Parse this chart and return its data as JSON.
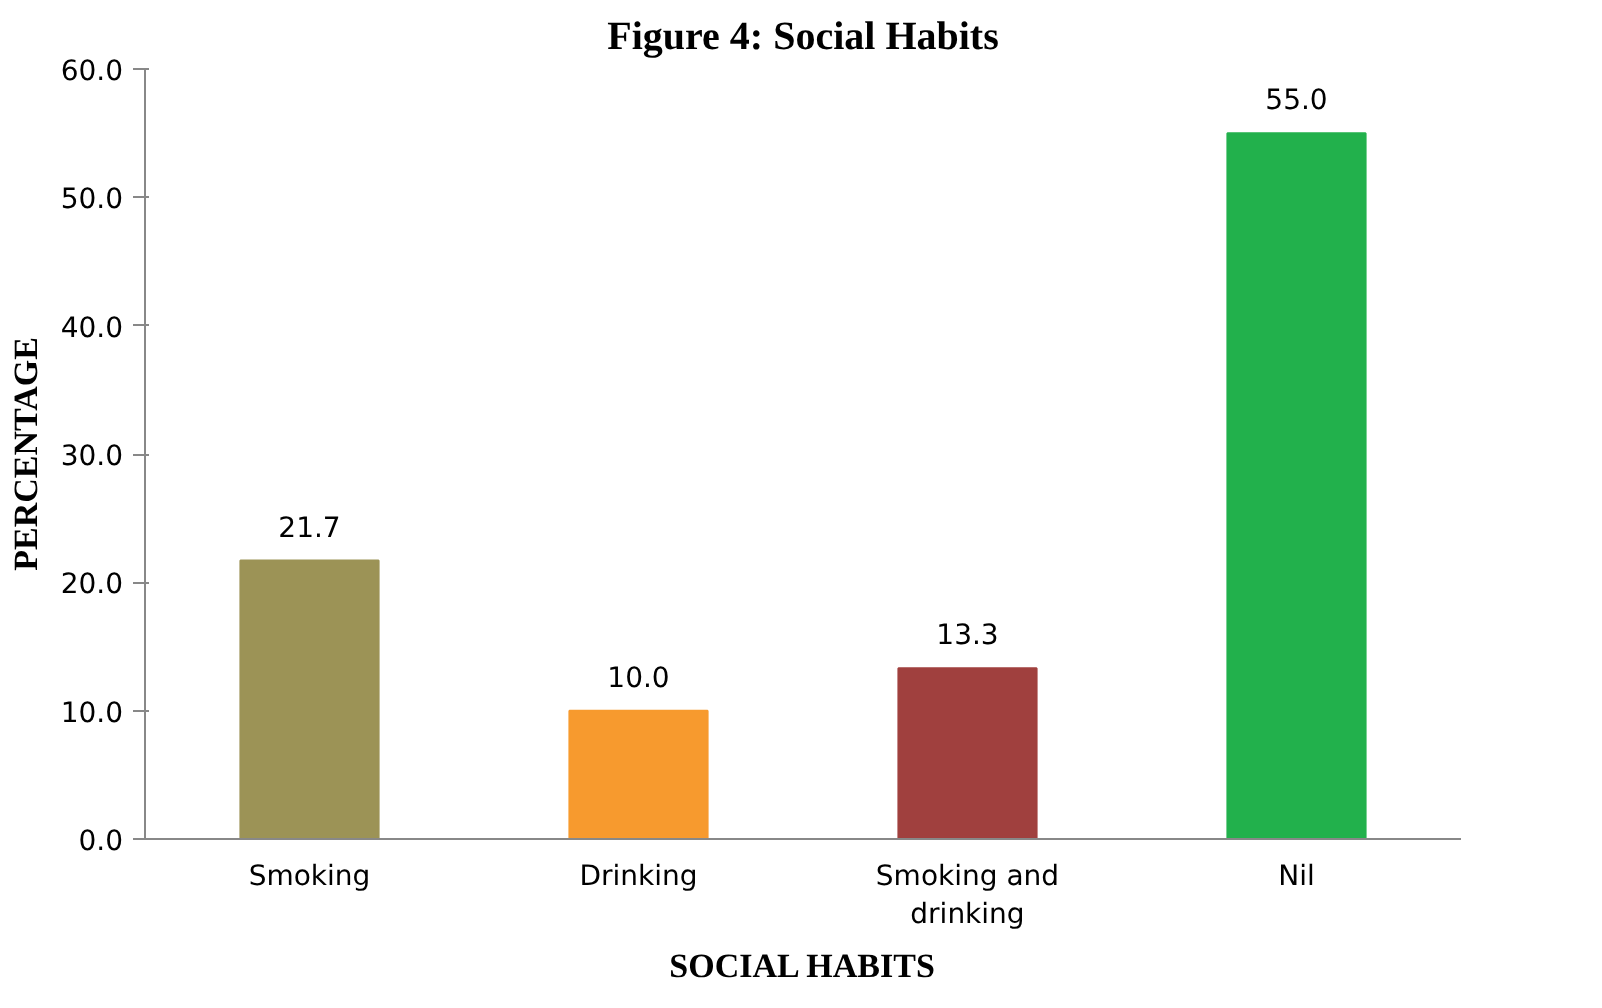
{
  "chart_data": {
    "type": "bar",
    "title": "Figure 4: Social Habits",
    "xlabel": "SOCIAL HABITS",
    "ylabel": "PERCENTAGE",
    "categories": [
      "Smoking",
      "Drinking",
      "Smoking and drinking",
      "Nil"
    ],
    "values": [
      21.7,
      10.0,
      13.3,
      55.0
    ],
    "colors": [
      "#9c9356",
      "#f79a2e",
      "#a0403e",
      "#22b14c"
    ],
    "value_labels": [
      "21.7",
      "10.0",
      "13.3",
      "55.0"
    ],
    "ylim": [
      0,
      60
    ],
    "yticks": [
      {
        "value": 0,
        "label": "0.0"
      },
      {
        "value": 10,
        "label": "10.0"
      },
      {
        "value": 20,
        "label": "20.0"
      },
      {
        "value": 30,
        "label": "30.0"
      },
      {
        "value": 40,
        "label": "40.0"
      },
      {
        "value": 50,
        "label": "50.0"
      },
      {
        "value": 60,
        "label": "60.0"
      }
    ],
    "grid": false
  }
}
